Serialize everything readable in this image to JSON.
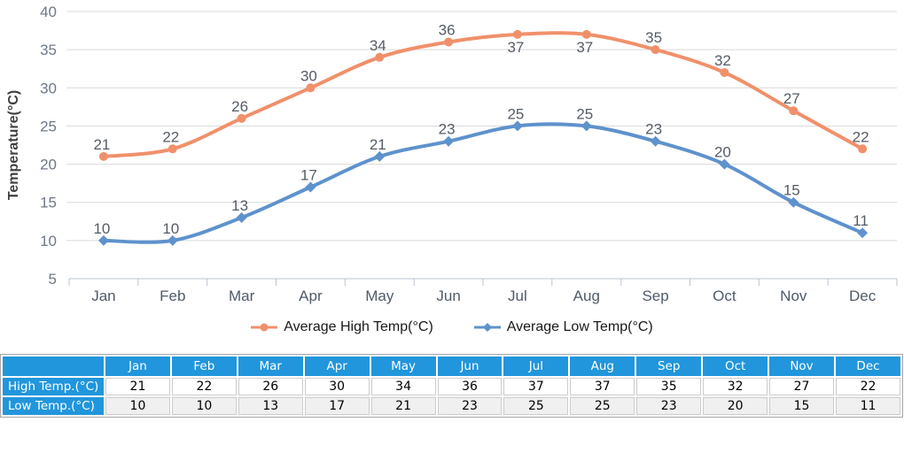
{
  "colors": {
    "high_series": "#F0906B",
    "low_series": "#5E92CC",
    "grid_line": "#D9D9D9",
    "axis_line": "#B9C5D2",
    "tick_label": "#6E7887",
    "month_label": "#4F5B68",
    "data_label": "#555C66",
    "axis_title": "#3F3F3F",
    "legend_text": "#1A1A1A",
    "table_header_bg": "#2196DC",
    "table_header_text": "#FFFFFF",
    "table_row_alt_bg": "#F0F0F0",
    "table_outer_border": "#A6A6A6",
    "table_cell_border": "#CCCCCC"
  },
  "chart_data": {
    "type": "line",
    "title": "",
    "categories": [
      "Jan",
      "Feb",
      "Mar",
      "Apr",
      "May",
      "Jun",
      "Jul",
      "Aug",
      "Sep",
      "Oct",
      "Nov",
      "Dec"
    ],
    "series": [
      {
        "name": "Average High Temp(°C)",
        "values": [
          21,
          22,
          26,
          30,
          34,
          36,
          37,
          37,
          35,
          32,
          27,
          22
        ],
        "color": "#F0906B",
        "marker": "circle",
        "label_below_indices": [
          6,
          7
        ]
      },
      {
        "name": "Average Low Temp(°C)",
        "values": [
          10,
          10,
          13,
          17,
          21,
          23,
          25,
          25,
          23,
          20,
          15,
          11
        ],
        "color": "#5E92CC",
        "marker": "diamond",
        "label_below_indices": []
      }
    ],
    "xlabel": "",
    "ylabel": "Temperature(°C)",
    "ylim": [
      5,
      40
    ],
    "yticks": [
      5,
      10,
      15,
      20,
      25,
      30,
      35,
      40
    ],
    "grid": "horizontal-only",
    "legend_position": "bottom-center",
    "data_labels": true
  },
  "table": {
    "corner_label": "",
    "months": [
      "Jan",
      "Feb",
      "Mar",
      "Apr",
      "May",
      "Jun",
      "Jul",
      "Aug",
      "Sep",
      "Oct",
      "Nov",
      "Dec"
    ],
    "rows": [
      {
        "label": "High Temp.(°C)",
        "values": [
          21,
          22,
          26,
          30,
          34,
          36,
          37,
          37,
          35,
          32,
          27,
          22
        ]
      },
      {
        "label": "Low Temp.(°C)",
        "values": [
          10,
          10,
          13,
          17,
          21,
          23,
          25,
          25,
          23,
          20,
          15,
          11
        ]
      }
    ]
  }
}
